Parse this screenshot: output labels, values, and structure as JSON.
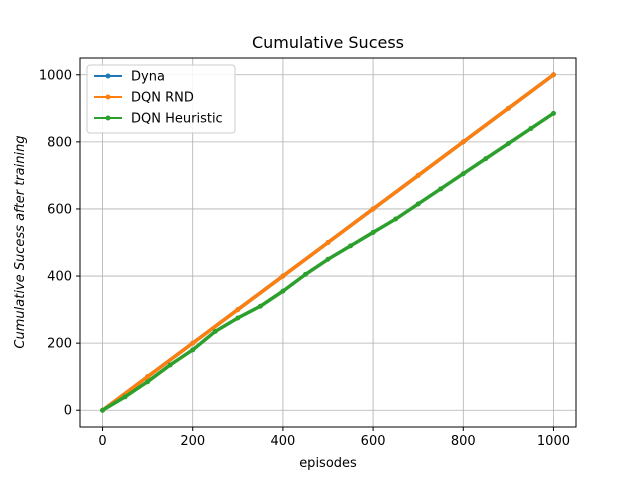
{
  "chart_data": {
    "type": "line",
    "title": "Cumulative Sucess",
    "xlabel": "episodes",
    "ylabel": "Cumulative Sucess after training",
    "xlim": [
      -50,
      1050
    ],
    "ylim": [
      -50,
      1050
    ],
    "xticks": [
      0,
      200,
      400,
      600,
      800,
      1000
    ],
    "yticks": [
      0,
      200,
      400,
      600,
      800,
      1000
    ],
    "grid": true,
    "legend_position": "top-left",
    "series": [
      {
        "name": "Dyna",
        "color": "#1f77b4",
        "x": [
          0,
          100,
          200,
          300,
          400,
          500,
          600,
          700,
          800,
          900,
          1000
        ],
        "y": [
          0,
          100,
          200,
          300,
          400,
          500,
          600,
          700,
          800,
          900,
          1000
        ]
      },
      {
        "name": "DQN RND",
        "color": "#ff7f0e",
        "x": [
          0,
          100,
          200,
          300,
          400,
          500,
          600,
          700,
          800,
          900,
          1000
        ],
        "y": [
          0,
          100,
          200,
          300,
          400,
          500,
          600,
          700,
          800,
          900,
          1000
        ]
      },
      {
        "name": "DQN Heuristic",
        "color": "#2ca02c",
        "x": [
          0,
          50,
          100,
          150,
          200,
          250,
          300,
          350,
          400,
          450,
          500,
          550,
          600,
          650,
          700,
          750,
          800,
          850,
          900,
          950,
          1000
        ],
        "y": [
          0,
          40,
          85,
          135,
          180,
          235,
          275,
          310,
          355,
          405,
          450,
          490,
          530,
          570,
          615,
          660,
          705,
          750,
          795,
          840,
          885
        ]
      }
    ]
  }
}
